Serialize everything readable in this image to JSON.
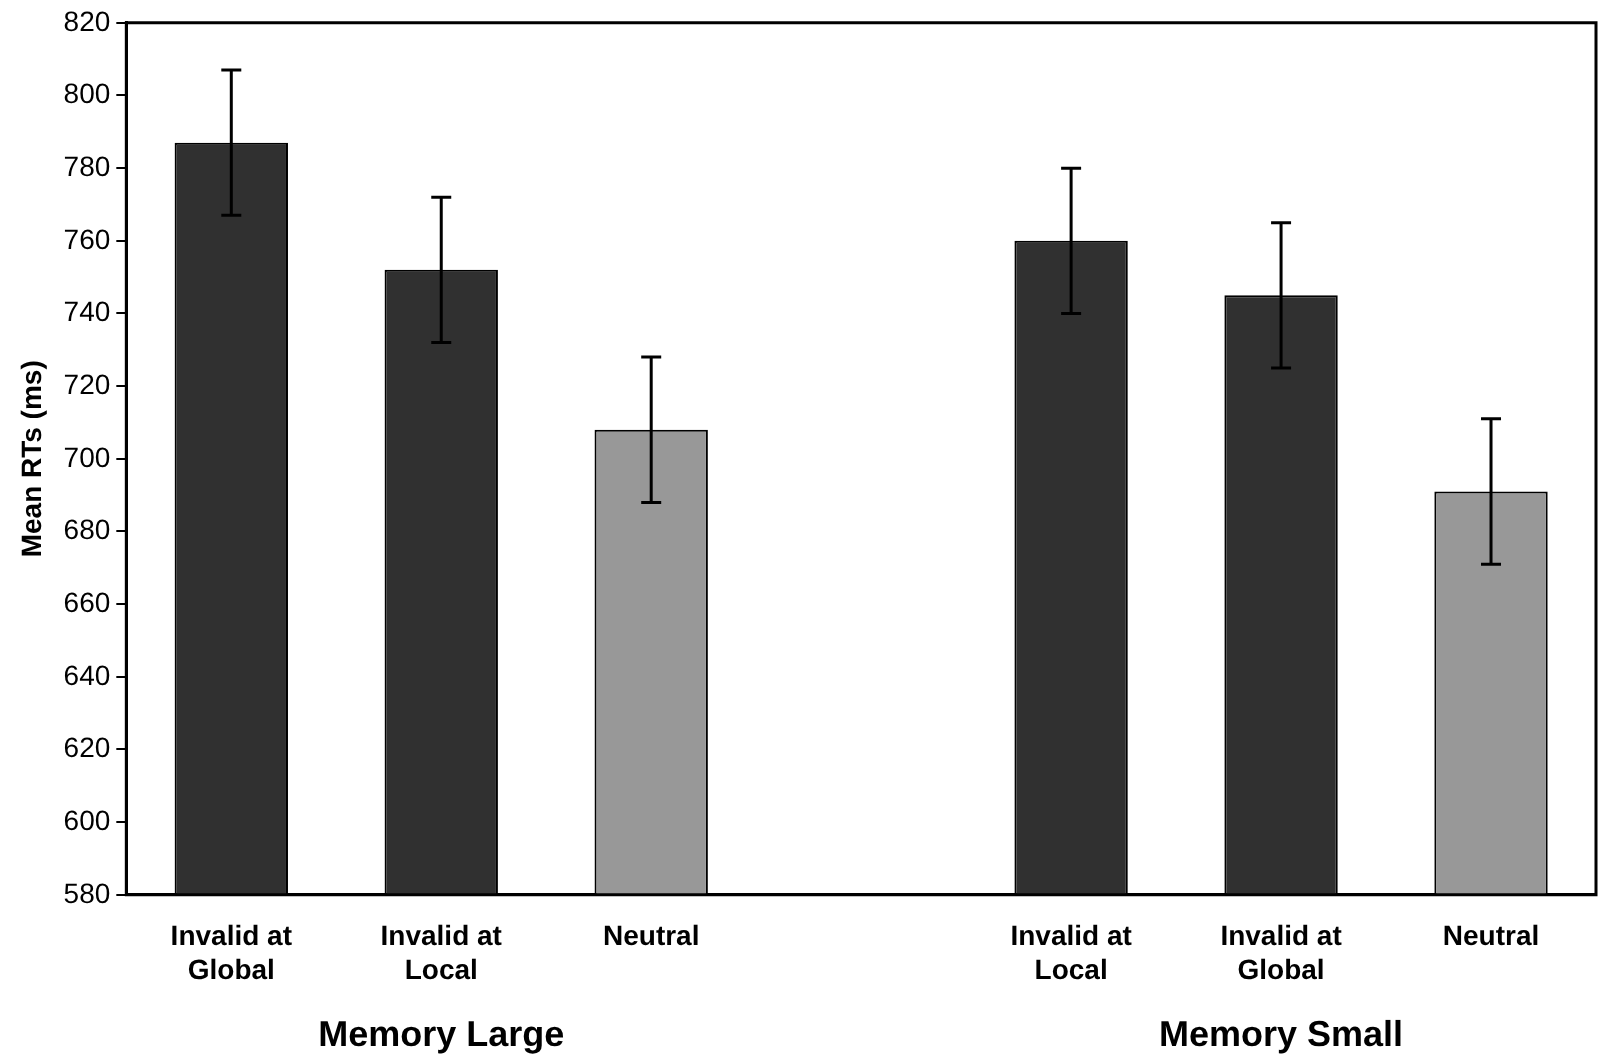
{
  "chart_data": {
    "type": "bar",
    "ylabel": "Mean RTs (ms)",
    "categories": [
      "Invalid at\nGlobal",
      "Invalid at\nLocal",
      "Neutral",
      null,
      "Invalid at\nLocal",
      "Invalid at\nGlobal",
      "Neutral"
    ],
    "values": [
      787,
      752,
      708,
      null,
      760,
      745,
      691
    ],
    "errors": [
      20,
      20,
      20,
      null,
      20,
      20,
      20
    ],
    "colors": [
      "#303030",
      "#303030",
      "#989898",
      null,
      "#303030",
      "#303030",
      "#989898"
    ],
    "ylim": [
      580,
      820
    ],
    "yticks": [
      580,
      600,
      620,
      640,
      660,
      680,
      700,
      720,
      740,
      760,
      780,
      800,
      820
    ],
    "grid": false,
    "legend": false,
    "annotations": [
      "Memory Large",
      "Memory Small"
    ]
  }
}
